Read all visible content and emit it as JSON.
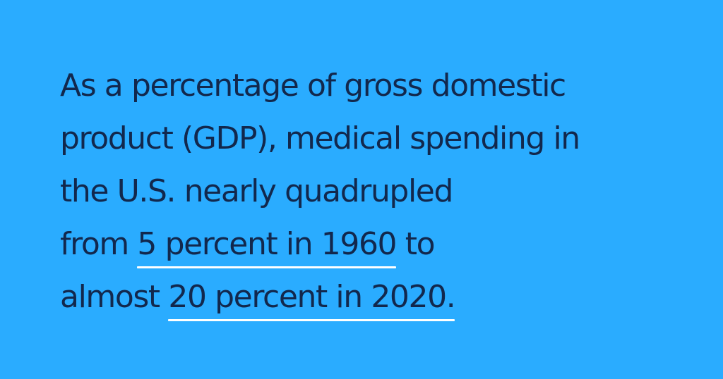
{
  "quote": {
    "line1": "As a percentage of gross domestic",
    "line2": "product (GDP), medical spending in",
    "line3": "the U.S. nearly quadrupled",
    "line4_prefix": "from ",
    "line4_highlight": "5 percent in 1960",
    "line4_suffix": " to",
    "line5_prefix": "almost ",
    "line5_highlight": "20 percent in 2020."
  },
  "colors": {
    "background": "#2aacff",
    "text": "#12284d",
    "underline": "#ffffff"
  }
}
